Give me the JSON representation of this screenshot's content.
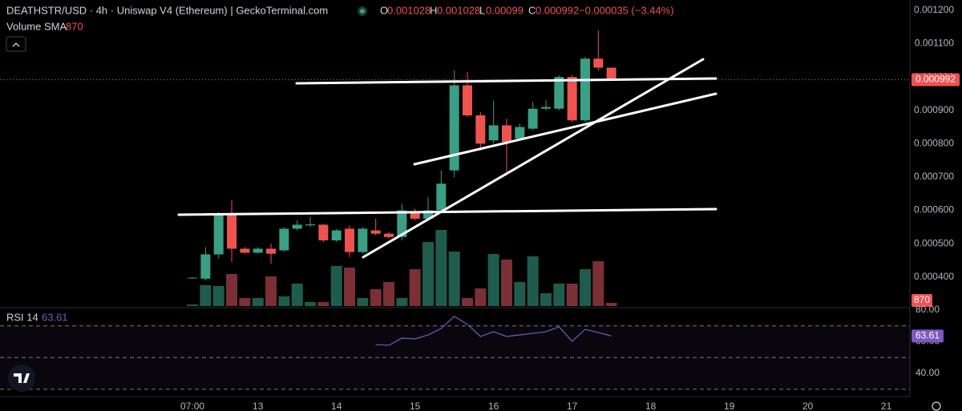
{
  "header": {
    "title": "DEATHSTR/USD · 4h · Uniswap V4 (Ethereum) | GeckoTerminal.com",
    "ohlc_labels": [
      "O",
      "H",
      "L",
      "C"
    ],
    "change": "−0.000035 (−3.44%)",
    "volume_label": "Volume SMA",
    "rsi_label": "RSI 14"
  },
  "chart_data": [
    {
      "type": "candlestick",
      "x": [
        0,
        1,
        2,
        3,
        4,
        5,
        6,
        7,
        8,
        9,
        10,
        11,
        12,
        13,
        14,
        15,
        16,
        17,
        18,
        19,
        20,
        21,
        22,
        23,
        24,
        25,
        26,
        27,
        28,
        29,
        30,
        31,
        32
      ],
      "open": [
        0.000398,
        0.000395,
        0.000468,
        0.00059,
        0.000485,
        0.000473,
        0.000485,
        0.00048,
        0.000545,
        0.000555,
        0.000557,
        0.00051,
        0.000545,
        0.000475,
        0.00054,
        0.00053,
        0.00052,
        0.000595,
        0.000575,
        0.0006,
        0.00072,
        0.000975,
        0.000885,
        0.00081,
        0.000855,
        0.000815,
        0.000845,
        0.000905,
        0.000905,
        0.001,
        0.00087,
        0.001055,
        0.001028
      ],
      "high": [
        0.0004,
        0.00049,
        0.000595,
        0.00063,
        0.00049,
        0.00049,
        0.0005,
        0.00055,
        0.00057,
        0.00058,
        0.00056,
        0.000545,
        0.000555,
        0.00055,
        0.000575,
        0.000535,
        0.00062,
        0.000605,
        0.00064,
        0.00072,
        0.00102,
        0.001015,
        0.000895,
        0.00093,
        0.000875,
        0.00086,
        0.000925,
        0.00093,
        0.001005,
        0.001005,
        0.00106,
        0.00114,
        0.001028
      ],
      "low": [
        0.000396,
        0.00039,
        0.000455,
        0.000445,
        0.00047,
        0.00047,
        0.00044,
        0.000475,
        0.00054,
        0.00055,
        0.000505,
        0.000505,
        0.00046,
        0.00047,
        0.000525,
        0.000515,
        0.00051,
        0.00057,
        0.00057,
        0.000595,
        0.0007,
        0.00088,
        0.00078,
        0.0008,
        0.000705,
        0.00081,
        0.00084,
        0.0009,
        0.0009,
        0.000865,
        0.000865,
        0.00102,
        0.00099
      ],
      "close": [
        0.000398,
        0.000468,
        0.00059,
        0.000485,
        0.000473,
        0.000485,
        0.00047,
        0.000545,
        0.000557,
        0.000558,
        0.00051,
        0.00054,
        0.000475,
        0.000545,
        0.00053,
        0.00052,
        0.0006,
        0.000575,
        0.0006,
        0.00068,
        0.000975,
        0.000885,
        0.0008,
        0.000855,
        0.000805,
        0.00085,
        0.000905,
        0.00091,
        0.001,
        0.00087,
        0.001055,
        0.001028,
        0.000992
      ],
      "volume": [
        435,
        5655,
        5438,
        8700,
        2175,
        2175,
        8048,
        2610,
        6090,
        1088,
        1088,
        10875,
        10440,
        2175,
        4568,
        6525,
        2175,
        10005,
        17400,
        20663,
        14790,
        2175,
        4785,
        14138,
        12615,
        6525,
        13485,
        3480,
        6090,
        6090,
        10005,
        12180,
        870
      ],
      "up_color": "#3a9f84",
      "down_color": "#ef5350",
      "up_volume_color": "#1f5c4e",
      "down_volume_color": "#7a3035",
      "ylim": [
        0.000313,
        0.001231
      ],
      "yticks": [
        {
          "value": 0.0012,
          "label": "0.001200"
        },
        {
          "value": 0.0011,
          "label": "0.001100"
        },
        {
          "value": 0.001,
          "label": "0.001000"
        },
        {
          "value": 0.0009,
          "label": "0.000900"
        },
        {
          "value": 0.0008,
          "label": "0.000800"
        },
        {
          "value": 0.0007,
          "label": "0.000700"
        },
        {
          "value": 0.0006,
          "label": "0.000600"
        },
        {
          "value": 0.0005,
          "label": "0.000500"
        },
        {
          "value": 0.0004,
          "label": "0.000400"
        }
      ],
      "xlim": [
        -14.7,
        54.8
      ],
      "xticks": [
        {
          "value": 0,
          "label": "07:00"
        },
        {
          "value": 5,
          "label": "13"
        },
        {
          "value": 11,
          "label": "14"
        },
        {
          "value": 17,
          "label": "15"
        },
        {
          "value": 23,
          "label": "16"
        },
        {
          "value": 29,
          "label": "17"
        },
        {
          "value": 35,
          "label": "18"
        },
        {
          "value": 41,
          "label": "19"
        },
        {
          "value": 47,
          "label": "20"
        },
        {
          "value": 53,
          "label": "21"
        }
      ]
    },
    {
      "type": "line",
      "x": [
        14,
        15,
        16,
        17,
        18,
        19,
        20,
        21,
        22,
        23,
        24,
        25,
        26,
        27,
        28,
        29,
        30,
        31,
        32
      ],
      "values": [
        58.2,
        57.7,
        62.3,
        61.8,
        64.3,
        68.4,
        76,
        70.9,
        63.3,
        66.3,
        63.3,
        64.3,
        65.3,
        66.3,
        69.4,
        60.3,
        67.8,
        65.8,
        63.61
      ],
      "color": "#7e57c2",
      "ylim": [
        20.3,
        81
      ],
      "yticks": [
        {
          "value": 80,
          "label": "80.00"
        },
        {
          "value": 60,
          "label": "60.00"
        },
        {
          "value": 40,
          "label": "40.00"
        }
      ],
      "hlines": [
        70,
        50,
        30
      ]
    }
  ]
}
